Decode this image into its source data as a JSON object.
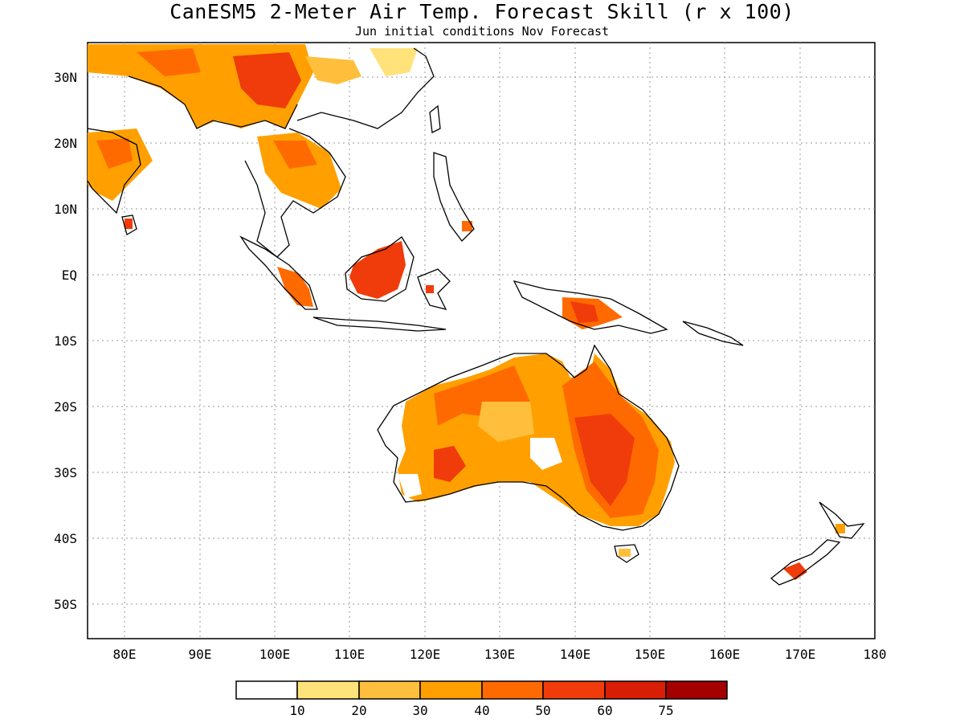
{
  "title": "CanESM5 2-Meter Air Temp. Forecast Skill (r x 100)",
  "subtitle": "Jun initial conditions  Nov Forecast",
  "x_ticks": [
    "80E",
    "90E",
    "100E",
    "110E",
    "120E",
    "130E",
    "140E",
    "150E",
    "160E",
    "170E",
    "180"
  ],
  "y_ticks": [
    "30N",
    "20N",
    "10N",
    "EQ",
    "10S",
    "20S",
    "30S",
    "40S",
    "50S"
  ],
  "colorbar": {
    "labels": [
      "10",
      "20",
      "30",
      "40",
      "50",
      "60",
      "75"
    ],
    "colors": [
      "#ffffff",
      "#ffe27a",
      "#ffbf3c",
      "#ffa000",
      "#ff6a00",
      "#f03c0a",
      "#d81e05",
      "#a50000"
    ]
  },
  "map": {
    "lon_range": [
      75,
      180
    ],
    "lat_range": [
      -55,
      35
    ],
    "grid": "dotted"
  }
}
